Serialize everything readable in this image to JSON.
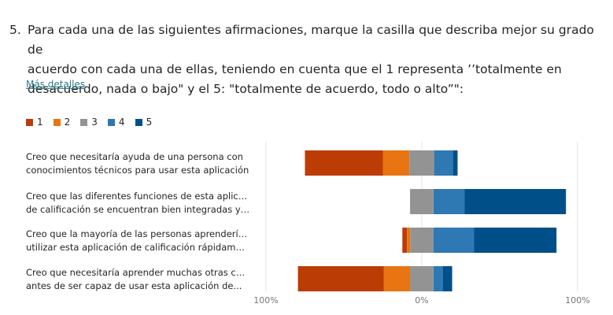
{
  "question": {
    "number": "5.",
    "lines": [
      "Para cada una de las siguientes afirmaciones, marque la casilla que describa mejor su grado de",
      "acuerdo con cada una de ellas, teniendo en cuenta que el 1 representa ’’totalmente en",
      "desacuerdo, nada o bajo\" y el 5: \"totalmente de acuerdo, todo o alto”\":"
    ]
  },
  "details_link": "Más detalles",
  "chart_data": {
    "type": "bar",
    "orientation": "horizontal-diverging",
    "legend": [
      {
        "label": "1",
        "color": "#bc3c05"
      },
      {
        "label": "2",
        "color": "#e87511"
      },
      {
        "label": "3",
        "color": "#939393"
      },
      {
        "label": "4",
        "color": "#2e78b3"
      },
      {
        "label": "5",
        "color": "#004f89"
      }
    ],
    "categories": [
      [
        "Creo que necesitaría ayuda de una persona con",
        "conocimientos técnicos para usar esta aplicación"
      ],
      [
        "Creo que las diferentes funciones de esta aplicación",
        "de calificación se encuentran bien integradas y son..."
      ],
      [
        "Creo que la mayoría de las personas aprenderían a",
        "utilizar esta aplicación de calificación rápidamente"
      ],
      [
        "Creo que necesitaría aprender muchas otras cosas",
        "antes de ser capaz de usar esta aplicación de..."
      ]
    ],
    "values_percent": [
      [
        50,
        17,
        16,
        12,
        3
      ],
      [
        0,
        0,
        15,
        20,
        65
      ],
      [
        3,
        2,
        15,
        26,
        53
      ],
      [
        55,
        17,
        15,
        6,
        6
      ]
    ],
    "xlim": [
      -100,
      100
    ],
    "x_tick_labels": [
      "100%",
      "0%",
      "100%"
    ]
  }
}
